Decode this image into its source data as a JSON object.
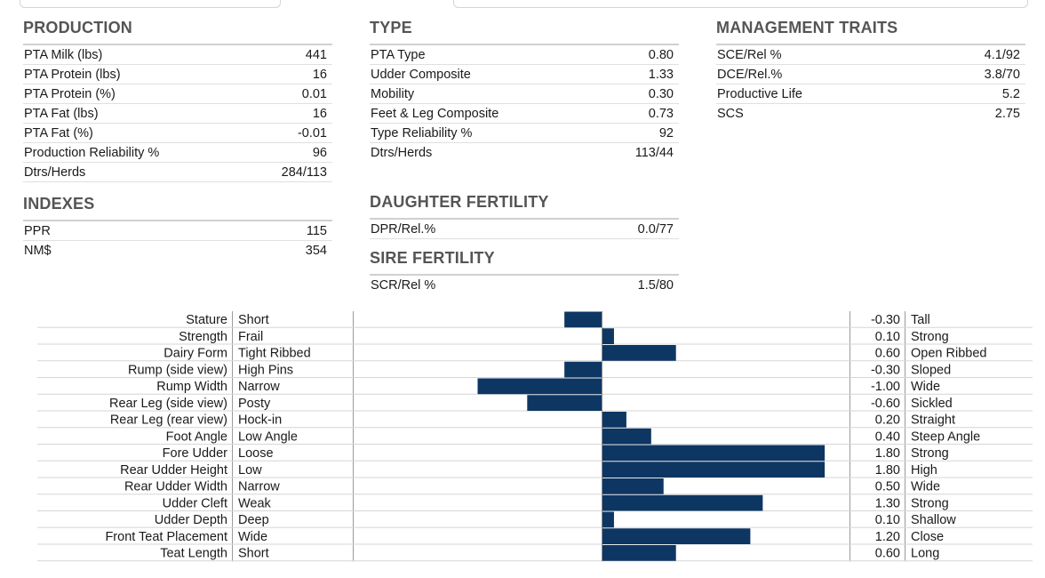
{
  "production": {
    "title": "PRODUCTION",
    "rows": [
      {
        "label": "PTA Milk (lbs)",
        "value": "441"
      },
      {
        "label": "PTA Protein (lbs)",
        "value": "16"
      },
      {
        "label": "PTA Protein (%)",
        "value": "0.01"
      },
      {
        "label": "PTA Fat (lbs)",
        "value": "16"
      },
      {
        "label": "PTA Fat (%)",
        "value": "-0.01"
      },
      {
        "label": "Production Reliability %",
        "value": "96"
      },
      {
        "label": "Dtrs/Herds",
        "value": "284/113"
      }
    ]
  },
  "indexes": {
    "title": "INDEXES",
    "rows": [
      {
        "label": "PPR",
        "value": "115"
      },
      {
        "label": "NM$",
        "value": "354"
      }
    ]
  },
  "type": {
    "title": "TYPE",
    "rows": [
      {
        "label": "PTA Type",
        "value": "0.80"
      },
      {
        "label": "Udder Composite",
        "value": "1.33"
      },
      {
        "label": "Mobility",
        "value": "0.30"
      },
      {
        "label": "Feet & Leg Composite",
        "value": "0.73"
      },
      {
        "label": "Type Reliability %",
        "value": "92"
      },
      {
        "label": "Dtrs/Herds",
        "value": "113/44"
      }
    ]
  },
  "daughter_fertility": {
    "title": "DAUGHTER FERTILITY",
    "rows": [
      {
        "label": "DPR/Rel.%",
        "value": "0.0/77"
      }
    ]
  },
  "sire_fertility": {
    "title": "SIRE FERTILITY",
    "rows": [
      {
        "label": "SCR/Rel %",
        "value": "1.5/80"
      }
    ]
  },
  "management": {
    "title": "MANAGEMENT TRAITS",
    "rows": [
      {
        "label": "SCE/Rel %",
        "value": "4.1/92"
      },
      {
        "label": "DCE/Rel.%",
        "value": "3.8/70"
      },
      {
        "label": "Productive Life",
        "value": "5.2"
      },
      {
        "label": "SCS",
        "value": "2.75"
      }
    ]
  },
  "chart_data": {
    "type": "bar",
    "orientation": "horizontal",
    "xlim": [
      -2,
      2
    ],
    "bar_color": "#0d3663",
    "categories": [
      "Stature",
      "Strength",
      "Dairy Form",
      "Rump (side view)",
      "Rump Width",
      "Rear Leg (side view)",
      "Rear Leg (rear view)",
      "Foot Angle",
      "Fore Udder",
      "Rear Udder Height",
      "Rear Udder Width",
      "Udder Cleft",
      "Udder Depth",
      "Front Teat Placement",
      "Teat Length"
    ],
    "low_labels": [
      "Short",
      "Frail",
      "Tight Ribbed",
      "High Pins",
      "Narrow",
      "Posty",
      "Hock-in",
      "Low Angle",
      "Loose",
      "Low",
      "Narrow",
      "Weak",
      "Deep",
      "Wide",
      "Short"
    ],
    "high_labels": [
      "Tall",
      "Strong",
      "Open Ribbed",
      "Sloped",
      "Wide",
      "Sickled",
      "Straight",
      "Steep Angle",
      "Strong",
      "High",
      "Wide",
      "Strong",
      "Shallow",
      "Close",
      "Long"
    ],
    "values": [
      -0.3,
      0.1,
      0.6,
      -0.3,
      -1.0,
      -0.6,
      0.2,
      0.4,
      1.8,
      1.8,
      0.5,
      1.3,
      0.1,
      1.2,
      0.6
    ],
    "value_labels": [
      "-0.30",
      "0.10",
      "0.60",
      "-0.30",
      "-1.00",
      "-0.60",
      "0.20",
      "0.40",
      "1.80",
      "1.80",
      "0.50",
      "1.30",
      "0.10",
      "1.20",
      "0.60"
    ]
  }
}
